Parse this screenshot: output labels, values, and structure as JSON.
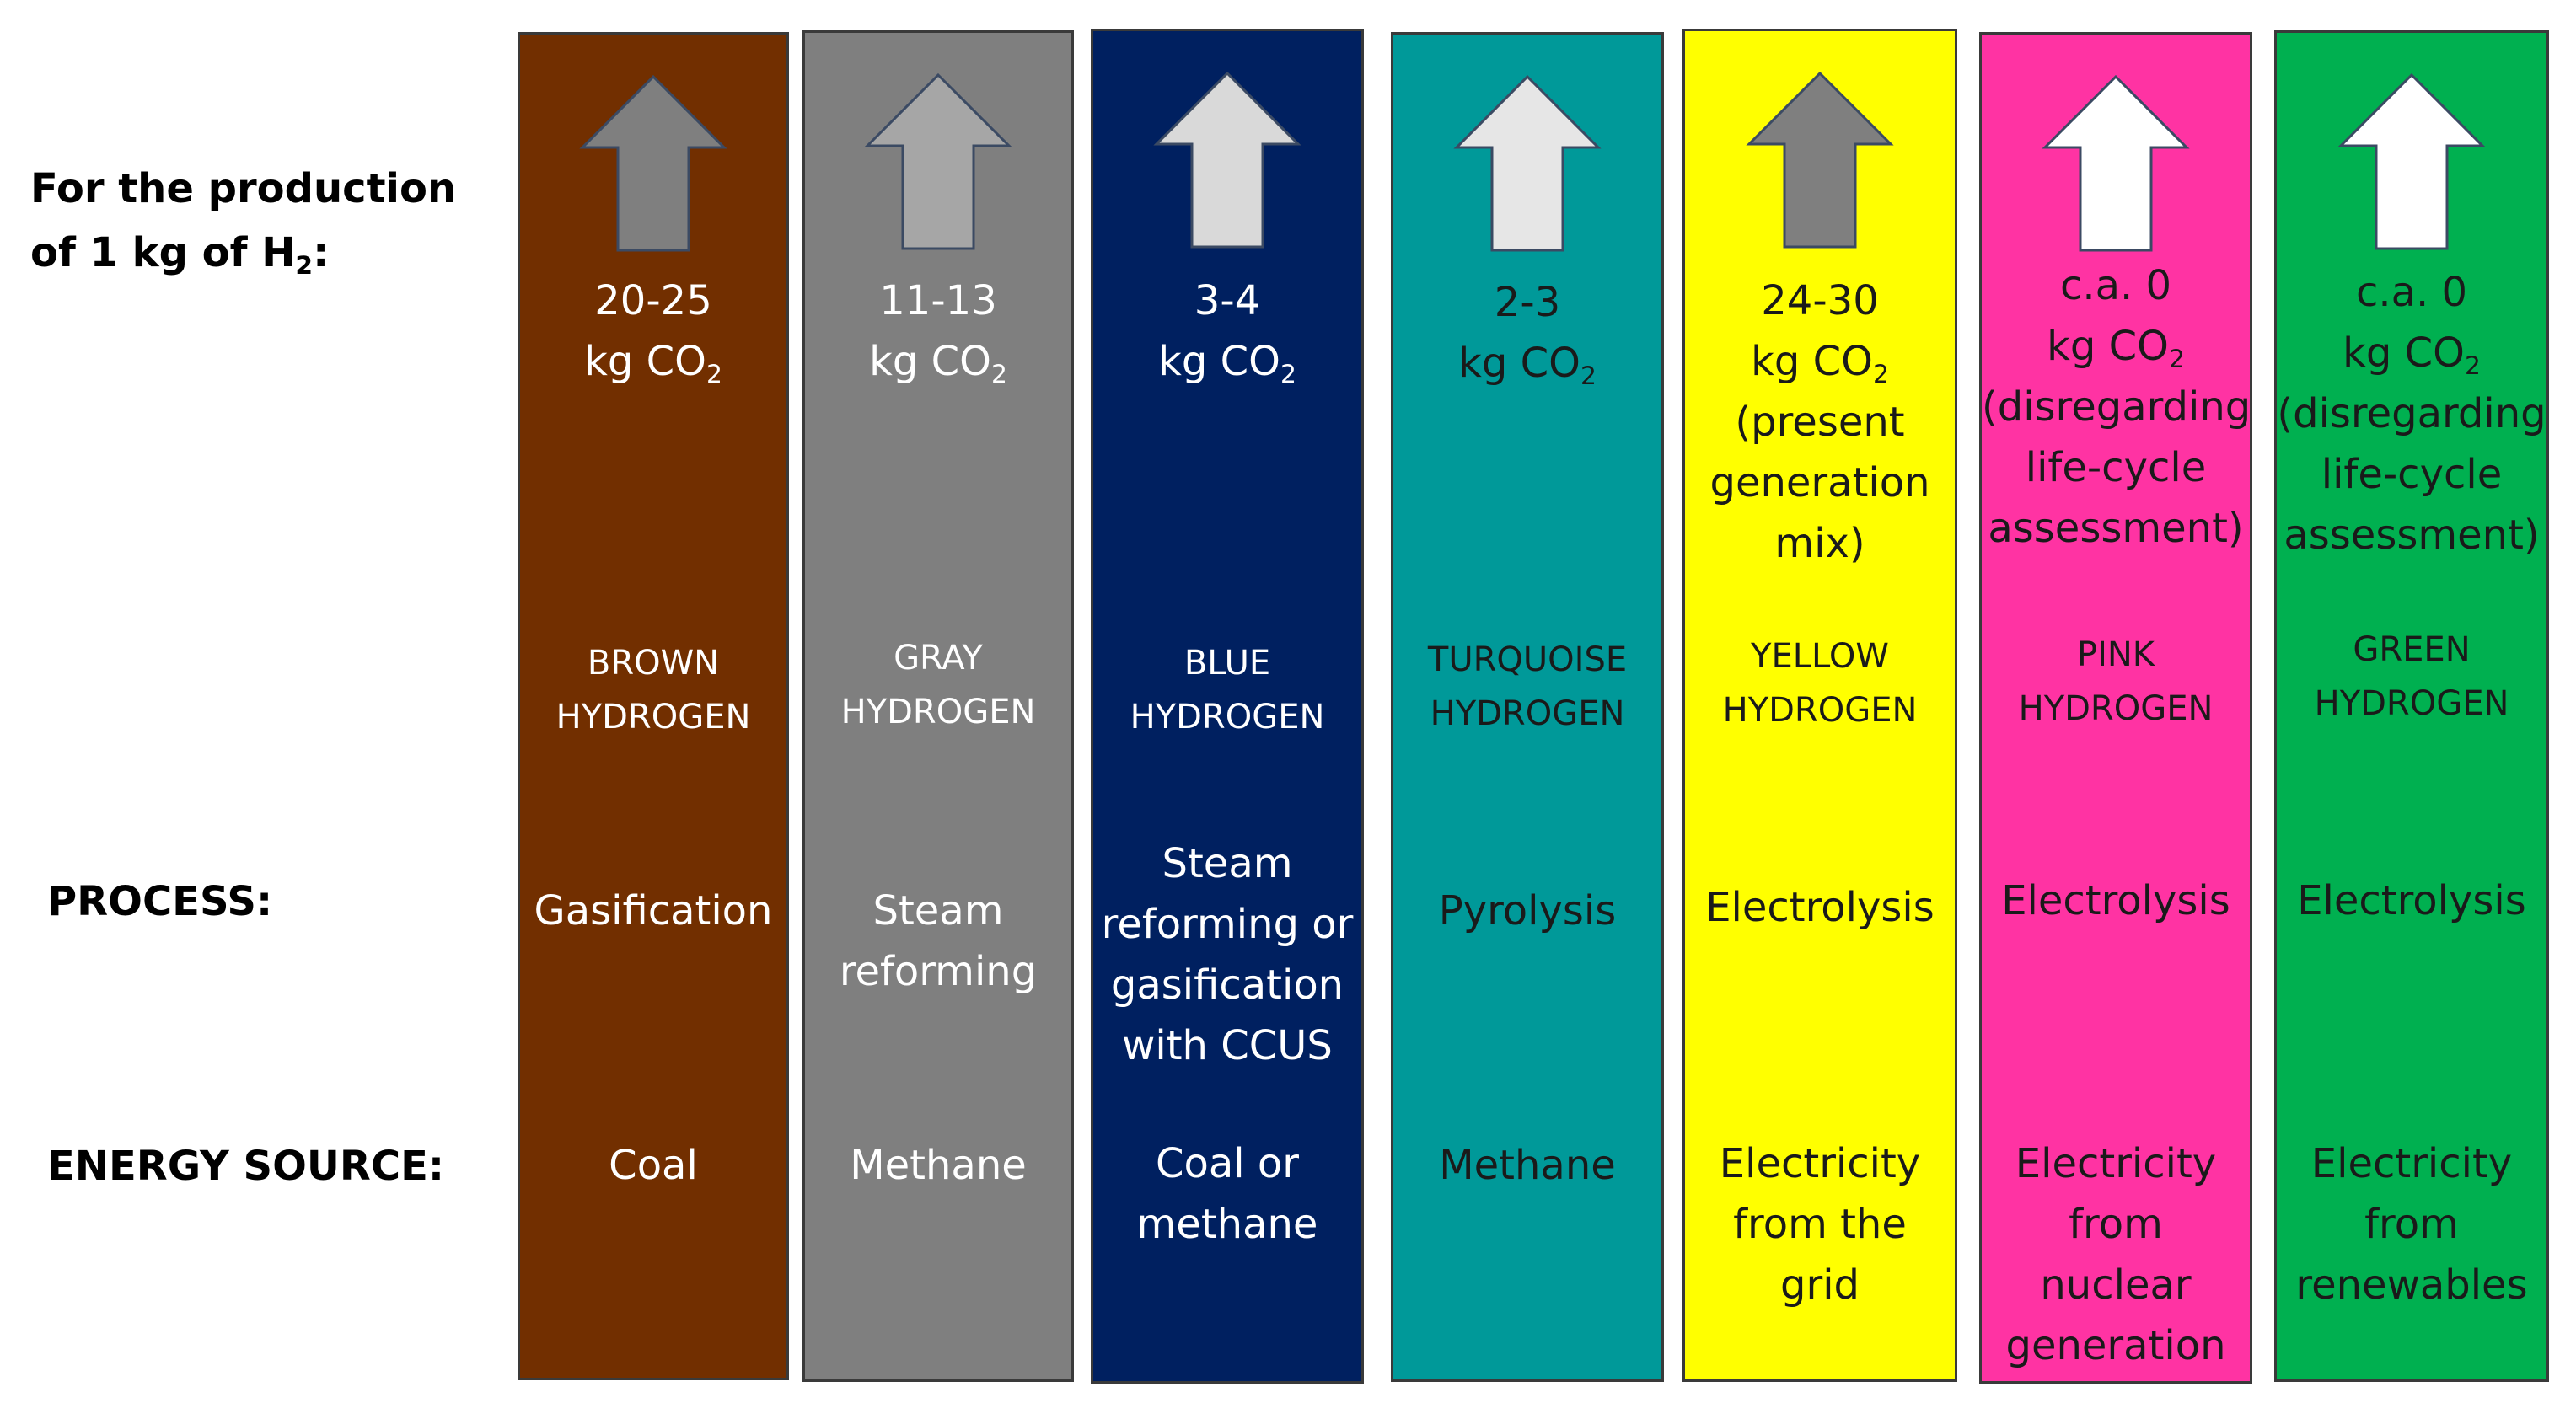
{
  "header": {
    "line1": "For the production",
    "line2_prefix": "of 1 kg of H",
    "line2_sub": "2",
    "line2_suffix": ":"
  },
  "row_labels": {
    "process": "PROCESS:",
    "energy_source": "ENERGY SOURCE:"
  },
  "columns": [
    {
      "bg": "#722f00",
      "text_color": "#ffffff",
      "arrow_fill": "#7f7f7f",
      "emission_value": "20-25",
      "emission_unit": "kg CO",
      "emission_sub": "2",
      "emission_extra": [],
      "name_line1": "BROWN",
      "name_line2": "HYDROGEN",
      "process": [
        "Gasification"
      ],
      "energy": [
        "Coal"
      ]
    },
    {
      "bg": "#7f7f7f",
      "text_color": "#ffffff",
      "arrow_fill": "#a6a6a6",
      "emission_value": "11-13",
      "emission_unit": "kg CO",
      "emission_sub": "2",
      "emission_extra": [],
      "name_line1": "GRAY",
      "name_line2": "HYDROGEN",
      "process": [
        "Steam",
        "reforming"
      ],
      "energy": [
        "Methane"
      ]
    },
    {
      "bg": "#002060",
      "text_color": "#ffffff",
      "arrow_fill": "#d9d9d9",
      "emission_value": "3-4",
      "emission_unit": "kg CO",
      "emission_sub": "2",
      "emission_extra": [],
      "name_line1": "BLUE",
      "name_line2": "HYDROGEN",
      "process": [
        "Steam",
        "reforming or",
        "gasification",
        "with CCUS"
      ],
      "energy": [
        "Coal or",
        "methane"
      ]
    },
    {
      "bg": "#009999",
      "text_color": "#1a1a1a",
      "arrow_fill": "#e6e6e6",
      "emission_value": "2-3",
      "emission_unit": "kg CO",
      "emission_sub": "2",
      "emission_extra": [],
      "name_line1": "TURQUOISE",
      "name_line2": "HYDROGEN",
      "process": [
        "Pyrolysis"
      ],
      "energy": [
        "Methane"
      ]
    },
    {
      "bg": "#ffff00",
      "text_color": "#1a1a1a",
      "arrow_fill": "#7f7f7f",
      "emission_value": "24-30",
      "emission_unit": "kg CO",
      "emission_sub": "2",
      "emission_extra": [
        "(present",
        "generation",
        "mix)"
      ],
      "name_line1": "YELLOW",
      "name_line2": "HYDROGEN",
      "process": [
        "Electrolysis"
      ],
      "energy": [
        "Electricity",
        "from the",
        "grid"
      ]
    },
    {
      "bg": "#ff33a3",
      "text_color": "#1a1a1a",
      "arrow_fill": "#ffffff",
      "emission_value": "c.a. 0",
      "emission_unit": "kg CO",
      "emission_sub": "2",
      "emission_extra": [
        "(disregarding",
        "life-cycle",
        "assessment)"
      ],
      "name_line1": "PINK",
      "name_line2": "HYDROGEN",
      "process": [
        "Electrolysis"
      ],
      "energy": [
        "Electricity",
        "from",
        "nuclear",
        "generation"
      ]
    },
    {
      "bg": "#00b050",
      "text_color": "#1a1a1a",
      "arrow_fill": "#ffffff",
      "emission_value": "c.a. 0",
      "emission_unit": "kg CO",
      "emission_sub": "2",
      "emission_extra": [
        "(disregarding",
        "life-cycle",
        "assessment)"
      ],
      "name_line1": "GREEN",
      "name_line2": "HYDROGEN",
      "process": [
        "Electrolysis"
      ],
      "energy": [
        "Electricity",
        "from",
        "renewables"
      ]
    }
  ]
}
